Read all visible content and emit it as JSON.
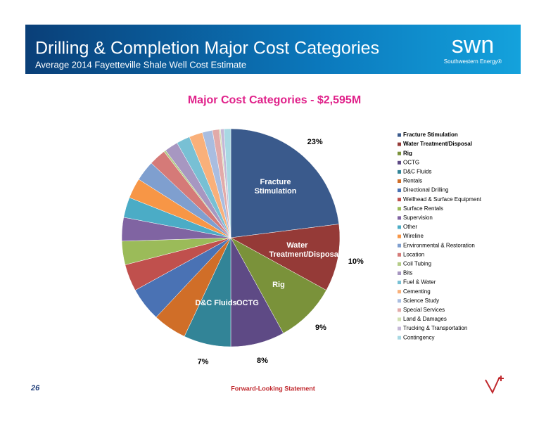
{
  "header": {
    "title": "Drilling & Completion Major Cost Categories",
    "subtitle": "Average 2014 Fayetteville Shale Well Cost Estimate",
    "logo_name": "swn",
    "logo_tagline": "Southwestern Energy®"
  },
  "chart_data": {
    "type": "pie",
    "title": "Major Cost Categories - $2,595M",
    "categories": [
      "Fracture Stimulation",
      "Water Treatment/Disposal",
      "Rig",
      "OCTG",
      "D&C Fluids",
      "Rentals",
      "Directional Drilling",
      "Wellhead & Surface Equipment",
      "Surface Rentals",
      "Supervision",
      "Other",
      "Wireline",
      "Environmental & Restoration",
      "Location",
      "Coil Tubing",
      "Bits",
      "Fuel & Water",
      "Cementing",
      "Science Study",
      "Special Services",
      "Land & Damages",
      "Trucking & Transportation",
      "Contingency"
    ],
    "values": [
      23,
      10,
      9,
      8,
      7,
      5,
      5,
      4,
      3.5,
      3.5,
      3,
      3,
      3,
      2.5,
      0.3,
      2,
      2,
      2,
      1.5,
      1,
      0.2,
      0.5,
      1
    ],
    "value_labels": [
      "23%",
      "10%",
      "9%",
      "8%",
      "7%",
      null,
      null,
      null,
      null,
      null,
      null,
      null,
      null,
      null,
      null,
      null,
      null,
      null,
      null,
      null,
      null,
      null,
      null
    ],
    "colors": [
      "#3a5a8c",
      "#953a37",
      "#7a923a",
      "#5e4a85",
      "#328497",
      "#d06e28",
      "#4a72b4",
      "#c0504d",
      "#9bbb59",
      "#8064a2",
      "#4bacc6",
      "#f79646",
      "#7f9fcf",
      "#d57a78",
      "#b5cc88",
      "#a797c1",
      "#78c0d4",
      "#f9b07a",
      "#a9bde0",
      "#e2aaa9",
      "#cfdfb0",
      "#c4b8d6",
      "#a8d8e3"
    ],
    "legend": "right"
  },
  "footer": {
    "page": 26,
    "note": "Forward-Looking Statement"
  }
}
